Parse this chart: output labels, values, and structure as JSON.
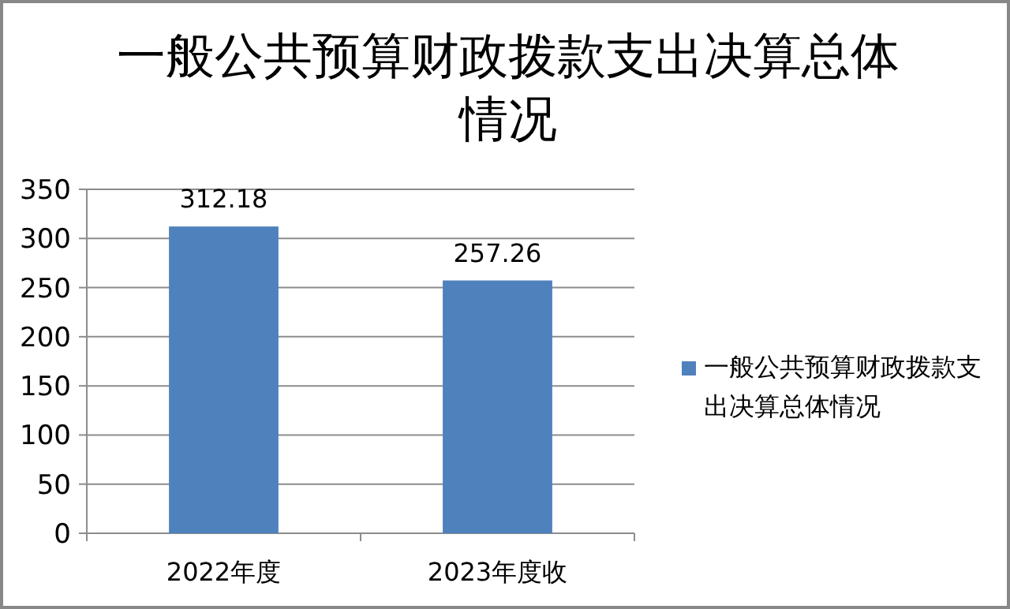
{
  "chart_data": {
    "type": "bar",
    "title": "一般公共预算财政拨款支出决算总体情况",
    "categories": [
      "2022年度",
      "2023年度收"
    ],
    "series": [
      {
        "name": "一般公共预算财政拨款支出决算总体情况",
        "color": "#4f81bd",
        "values": [
          312.18,
          257.26
        ]
      }
    ],
    "ylim": [
      0,
      350
    ],
    "yticks": [
      0,
      50,
      100,
      150,
      200,
      250,
      300,
      350
    ],
    "grid": "y",
    "legend": "right",
    "data_labels": true
  }
}
